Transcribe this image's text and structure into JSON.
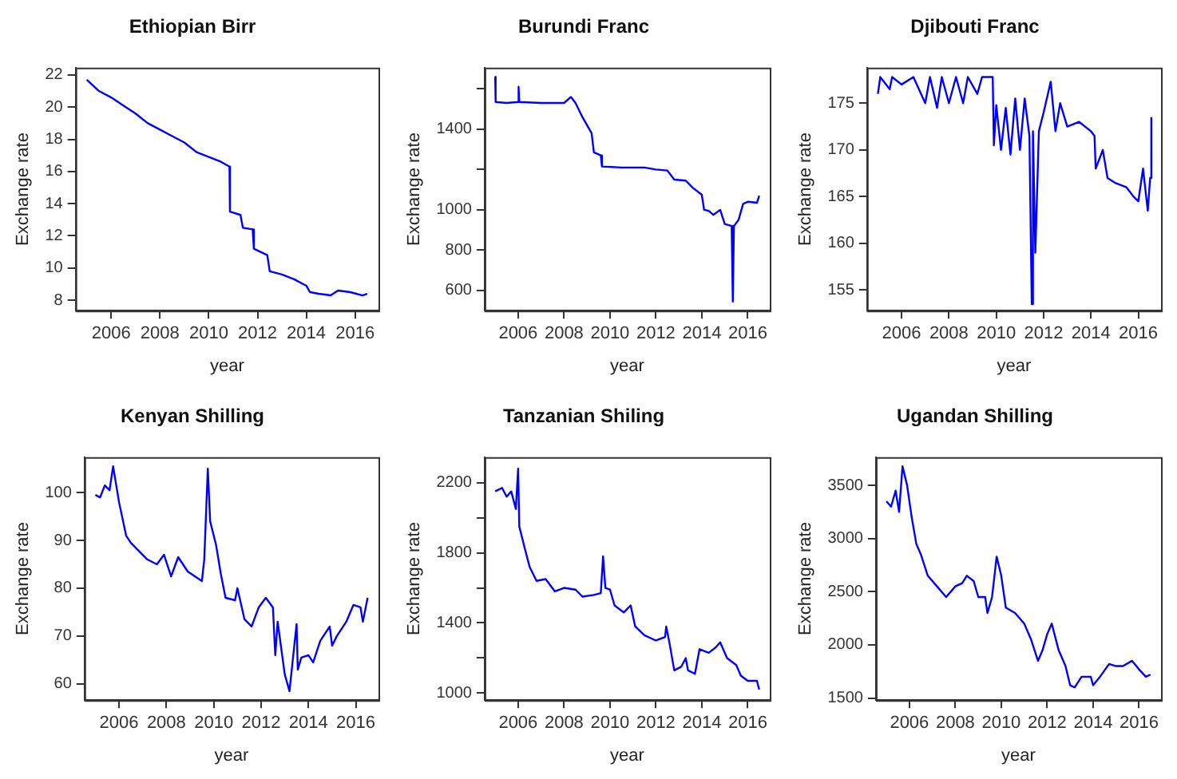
{
  "chart_data": [
    {
      "type": "line",
      "title": "Ethiopian Birr",
      "xlabel": "year",
      "ylabel": "Exchange rate",
      "xlim": [
        2004.54,
        2016.96
      ],
      "ylim": [
        7.35,
        22.45
      ],
      "xticks": [
        2006,
        2008,
        2010,
        2012,
        2014,
        2016
      ],
      "yticks": [
        8,
        10,
        12,
        14,
        16,
        18,
        20,
        22
      ],
      "x": [
        2005.0,
        2005.5,
        2006.0,
        2006.5,
        2007.0,
        2007.5,
        2008.0,
        2008.5,
        2009.0,
        2009.5,
        2010.0,
        2010.5,
        2010.85,
        2010.87,
        2011.3,
        2011.4,
        2011.8,
        2011.85,
        2012.4,
        2012.5,
        2013.0,
        2013.5,
        2014.0,
        2014.15,
        2014.5,
        2015.0,
        2015.3,
        2015.8,
        2016.3,
        2016.5
      ],
      "series": [
        {
          "color": "#0000ff",
          "values": [
            21.7,
            21.0,
            20.6,
            20.1,
            19.6,
            19.0,
            18.6,
            18.2,
            17.8,
            17.2,
            16.9,
            16.6,
            16.3,
            13.5,
            13.3,
            12.5,
            12.4,
            11.2,
            10.8,
            9.8,
            9.6,
            9.3,
            8.9,
            8.5,
            8.4,
            8.3,
            8.6,
            8.5,
            8.3,
            8.4
          ]
        }
      ]
    },
    {
      "type": "line",
      "title": "Burundi Franc",
      "xlabel": "year",
      "ylabel": "Exchange rate",
      "xlim": [
        2004.54,
        2016.96
      ],
      "ylim": [
        500,
        1705
      ],
      "xticks": [
        2006,
        2008,
        2010,
        2012,
        2014,
        2016
      ],
      "yticks": [
        600,
        800,
        1000,
        {
          "value": 1200,
          "label": null
        },
        1400,
        {
          "value": 1600,
          "label": null
        }
      ],
      "x": [
        2005.0,
        2005.02,
        2005.5,
        2006.0,
        2006.02,
        2006.05,
        2007.0,
        2007.5,
        2008.0,
        2008.3,
        2008.5,
        2008.8,
        2009.2,
        2009.3,
        2009.6,
        2009.65,
        2010.5,
        2011.5,
        2012.0,
        2012.5,
        2012.8,
        2013.3,
        2013.6,
        2014.0,
        2014.1,
        2014.3,
        2014.5,
        2014.8,
        2015.0,
        2015.3,
        2015.35,
        2015.4,
        2015.6,
        2015.8,
        2016.0,
        2016.4,
        2016.5
      ],
      "series": [
        {
          "color": "#0000ff",
          "values": [
            1660,
            1535,
            1530,
            1535,
            1610,
            1535,
            1530,
            1530,
            1530,
            1560,
            1530,
            1460,
            1380,
            1285,
            1270,
            1215,
            1210,
            1210,
            1200,
            1195,
            1150,
            1145,
            1110,
            1075,
            1000,
            995,
            975,
            1000,
            930,
            920,
            545,
            920,
            950,
            1030,
            1040,
            1035,
            1070
          ]
        }
      ]
    },
    {
      "type": "line",
      "title": "Djibouti Franc",
      "xlabel": "year",
      "ylabel": "Exchange rate",
      "xlim": [
        2004.54,
        2016.96
      ],
      "ylim": [
        152.8,
        178.8
      ],
      "xticks": [
        2006,
        2008,
        2010,
        2012,
        2014,
        2016
      ],
      "yticks": [
        155,
        160,
        165,
        170,
        175
      ],
      "x": [
        2005.0,
        2005.1,
        2005.5,
        2005.6,
        2006.0,
        2006.5,
        2007.0,
        2007.2,
        2007.5,
        2007.7,
        2008.0,
        2008.3,
        2008.6,
        2008.8,
        2009.2,
        2009.4,
        2009.85,
        2009.9,
        2010.0,
        2010.2,
        2010.4,
        2010.6,
        2010.8,
        2011.0,
        2011.2,
        2011.4,
        2011.5,
        2011.55,
        2011.65,
        2011.8,
        2012.0,
        2012.3,
        2012.5,
        2012.7,
        2013.0,
        2013.5,
        2014.0,
        2014.15,
        2014.2,
        2014.5,
        2014.7,
        2015.0,
        2015.5,
        2015.8,
        2016.0,
        2016.2,
        2016.4,
        2016.5,
        2016.55
      ],
      "series": [
        {
          "color": "#0000ff",
          "values": [
            176,
            177.8,
            176.5,
            177.8,
            177,
            177.8,
            175,
            177.8,
            174.5,
            177.8,
            175,
            177.8,
            175,
            177.8,
            176,
            177.8,
            177.8,
            170.5,
            174.8,
            170,
            174.5,
            169.5,
            175.5,
            170,
            175.5,
            171.5,
            153.5,
            172,
            159,
            172,
            174,
            177.3,
            172,
            175,
            172.5,
            173,
            172,
            171.5,
            168,
            170,
            167,
            166.5,
            166,
            165,
            164.5,
            168,
            163.5,
            167,
            173.5
          ]
        }
      ]
    },
    {
      "type": "line",
      "title": "Kenyan Shilling",
      "xlabel": "year",
      "ylabel": "Exchange rate",
      "xlim": [
        2004.54,
        2016.96
      ],
      "ylim": [
        56.6,
        107.4
      ],
      "xticks": [
        2006,
        2008,
        2010,
        2012,
        2014,
        2016
      ],
      "yticks": [
        60,
        70,
        80,
        90,
        100
      ],
      "x": [
        2005.0,
        2005.2,
        2005.4,
        2005.6,
        2005.75,
        2005.9,
        2006.0,
        2006.3,
        2006.5,
        2006.8,
        2007.2,
        2007.6,
        2007.9,
        2008.2,
        2008.5,
        2008.9,
        2009.2,
        2009.5,
        2009.6,
        2009.75,
        2009.85,
        2010.1,
        2010.3,
        2010.5,
        2010.9,
        2011.0,
        2011.3,
        2011.6,
        2011.9,
        2012.2,
        2012.5,
        2012.6,
        2012.7,
        2013.0,
        2013.2,
        2013.5,
        2013.55,
        2013.7,
        2014.0,
        2014.2,
        2014.5,
        2014.9,
        2015.0,
        2015.2,
        2015.6,
        2015.9,
        2016.2,
        2016.3,
        2016.5
      ],
      "series": [
        {
          "color": "#0000ff",
          "values": [
            99.5,
            99,
            101.5,
            100.5,
            105.5,
            101,
            98,
            91,
            89.5,
            88,
            86,
            85,
            87,
            82.5,
            86.5,
            83.5,
            82.5,
            81.5,
            86,
            105,
            94,
            89,
            83,
            78,
            77.5,
            80,
            73.5,
            72,
            76,
            78,
            76,
            66,
            73,
            62,
            58.5,
            72.5,
            63,
            65.5,
            66,
            64.5,
            69,
            72,
            68,
            70,
            73,
            76.5,
            76,
            73,
            78
          ]
        }
      ]
    },
    {
      "type": "line",
      "title": "Tanzanian Shiling",
      "xlabel": "year",
      "ylabel": "Exchange rate",
      "xlim": [
        2004.54,
        2016.96
      ],
      "ylim": [
        960,
        2345
      ],
      "xticks": [
        2006,
        2008,
        2010,
        2012,
        2014,
        2016
      ],
      "yticks": [
        1000,
        {
          "value": 1200,
          "label": null
        },
        1400,
        {
          "value": 1600,
          "label": null
        },
        1800,
        {
          "value": 2000,
          "label": null
        },
        2200
      ],
      "x": [
        2005.0,
        2005.3,
        2005.5,
        2005.7,
        2005.9,
        2006.0,
        2006.05,
        2006.3,
        2006.5,
        2006.8,
        2007.2,
        2007.6,
        2008.0,
        2008.5,
        2008.8,
        2009.3,
        2009.6,
        2009.7,
        2009.8,
        2010.0,
        2010.2,
        2010.6,
        2010.9,
        2011.1,
        2011.5,
        2012.0,
        2012.4,
        2012.45,
        2012.6,
        2012.8,
        2013.1,
        2013.3,
        2013.4,
        2013.7,
        2013.9,
        2014.3,
        2014.6,
        2014.8,
        2015.1,
        2015.5,
        2015.7,
        2016.0,
        2016.4,
        2016.5
      ],
      "series": [
        {
          "color": "#0000ff",
          "values": [
            2150,
            2170,
            2120,
            2150,
            2050,
            2280,
            1950,
            1820,
            1720,
            1640,
            1650,
            1580,
            1600,
            1590,
            1550,
            1560,
            1570,
            1780,
            1600,
            1590,
            1500,
            1460,
            1500,
            1380,
            1330,
            1300,
            1320,
            1380,
            1280,
            1130,
            1150,
            1200,
            1130,
            1110,
            1250,
            1230,
            1260,
            1290,
            1200,
            1160,
            1100,
            1070,
            1070,
            1020
          ]
        }
      ]
    },
    {
      "type": "line",
      "title": "Ugandan Shilling",
      "xlabel": "year",
      "ylabel": "Exchange rate",
      "xlim": [
        2004.54,
        2016.96
      ],
      "ylim": [
        1480,
        3765
      ],
      "xticks": [
        2006,
        2008,
        2010,
        2012,
        2014,
        2016
      ],
      "yticks": [
        1500,
        2000,
        2500,
        3000,
        3500
      ],
      "x": [
        2005.0,
        2005.2,
        2005.4,
        2005.55,
        2005.7,
        2005.9,
        2006.1,
        2006.3,
        2006.5,
        2006.8,
        2007.2,
        2007.6,
        2008.0,
        2008.3,
        2008.5,
        2008.8,
        2009.0,
        2009.3,
        2009.4,
        2009.6,
        2009.8,
        2010.0,
        2010.2,
        2010.6,
        2011.0,
        2011.3,
        2011.6,
        2011.8,
        2012.0,
        2012.2,
        2012.5,
        2012.8,
        2013.0,
        2013.2,
        2013.5,
        2013.9,
        2014.0,
        2014.3,
        2014.7,
        2015.0,
        2015.3,
        2015.7,
        2016.0,
        2016.3,
        2016.5
      ],
      "series": [
        {
          "color": "#0000ff",
          "values": [
            3350,
            3300,
            3450,
            3250,
            3680,
            3500,
            3200,
            2950,
            2850,
            2650,
            2550,
            2450,
            2550,
            2580,
            2650,
            2600,
            2450,
            2450,
            2300,
            2450,
            2830,
            2650,
            2350,
            2300,
            2200,
            2050,
            1850,
            1950,
            2100,
            2200,
            1950,
            1800,
            1620,
            1600,
            1700,
            1700,
            1620,
            1700,
            1820,
            1800,
            1800,
            1850,
            1770,
            1700,
            1720
          ]
        }
      ]
    }
  ]
}
